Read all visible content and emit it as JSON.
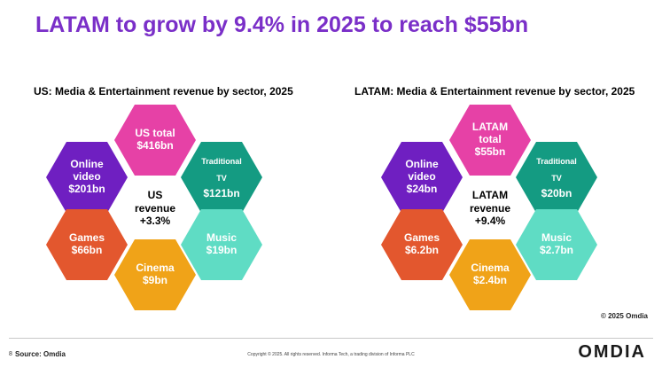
{
  "title": "LATAM to grow by 9.4% in 2025 to reach $55bn",
  "us": {
    "title": "US: Media & Entertainment revenue by sector, 2025",
    "total": [
      "US total",
      "$416bn"
    ],
    "online": [
      "Online",
      "video",
      "$201bn"
    ],
    "tradtv": [
      "Traditional",
      "TV",
      "$121bn"
    ],
    "center": [
      "US",
      "revenue",
      "+3.3%"
    ],
    "games": [
      "Games",
      "$66bn"
    ],
    "music": [
      "Music",
      "$19bn"
    ],
    "cinema": [
      "Cinema",
      "$9bn"
    ]
  },
  "latam": {
    "title": "LATAM: Media & Entertainment revenue by sector, 2025",
    "total": [
      "LATAM",
      "total",
      "$55bn"
    ],
    "online": [
      "Online",
      "video",
      "$24bn"
    ],
    "tradtv": [
      "Traditional",
      "TV",
      "$20bn"
    ],
    "center": [
      "LATAM",
      "revenue",
      "+9.4%"
    ],
    "games": [
      "Games",
      "$6.2bn"
    ],
    "music": [
      "Music",
      "$2.7bn"
    ],
    "cinema": [
      "Cinema",
      "$2.4bn"
    ]
  },
  "footer": {
    "copyright": "© 2025 Omdia",
    "page_number": "8",
    "source": "Source: Omdia",
    "legal": "Copyright © 2025. All rights reserved. Informa Tech, a trading division of Informa PLC",
    "logo": "OMDIA"
  },
  "colors": {
    "title": "#7a2fc8",
    "total": "#e641a6",
    "online_video": "#6f1fc1",
    "traditional_tv": "#149b82",
    "games": "#e3572e",
    "music": "#5fdcc4",
    "cinema": "#f0a318"
  }
}
